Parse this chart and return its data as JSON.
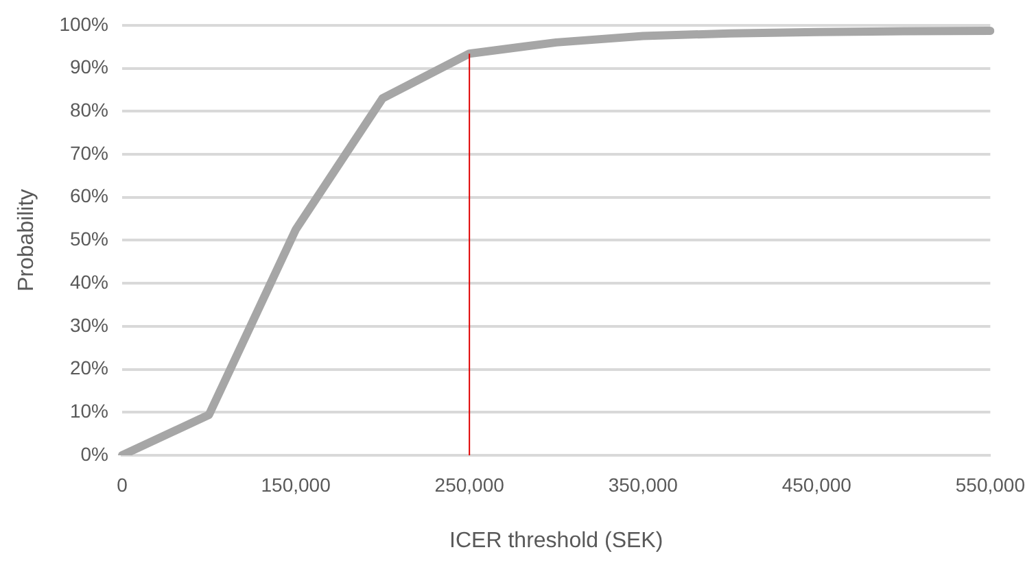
{
  "chart_data": {
    "type": "line",
    "xlabel": "ICER threshold (SEK)",
    "ylabel": "Probability",
    "categories": [
      "0",
      null,
      "150,000",
      null,
      "250,000",
      null,
      "350,000",
      null,
      "450,000",
      null,
      "550,000"
    ],
    "series": [
      {
        "color": "#a6a6a6",
        "values": [
          0,
          9.4,
          52.5,
          83,
          93.4,
          96,
          97.5,
          98.1,
          98.4,
          98.6,
          98.7
        ]
      }
    ],
    "ylim": [
      0,
      100
    ],
    "yticks": [
      {
        "value": 0,
        "label": "0%"
      },
      {
        "value": 10,
        "label": "10%"
      },
      {
        "value": 20,
        "label": "20%"
      },
      {
        "value": 30,
        "label": "30%"
      },
      {
        "value": 40,
        "label": "40%"
      },
      {
        "value": 50,
        "label": "50%"
      },
      {
        "value": 60,
        "label": "60%"
      },
      {
        "value": 70,
        "label": "70%"
      },
      {
        "value": 80,
        "label": "80%"
      },
      {
        "value": 90,
        "label": "90%"
      },
      {
        "value": 100,
        "label": "100%"
      }
    ],
    "ref_lines": [
      {
        "axis": "x",
        "value": "250,000",
        "color": "#e00000"
      }
    ],
    "grid": "y",
    "legend": false,
    "marker": "none",
    "line_style": "solid"
  }
}
